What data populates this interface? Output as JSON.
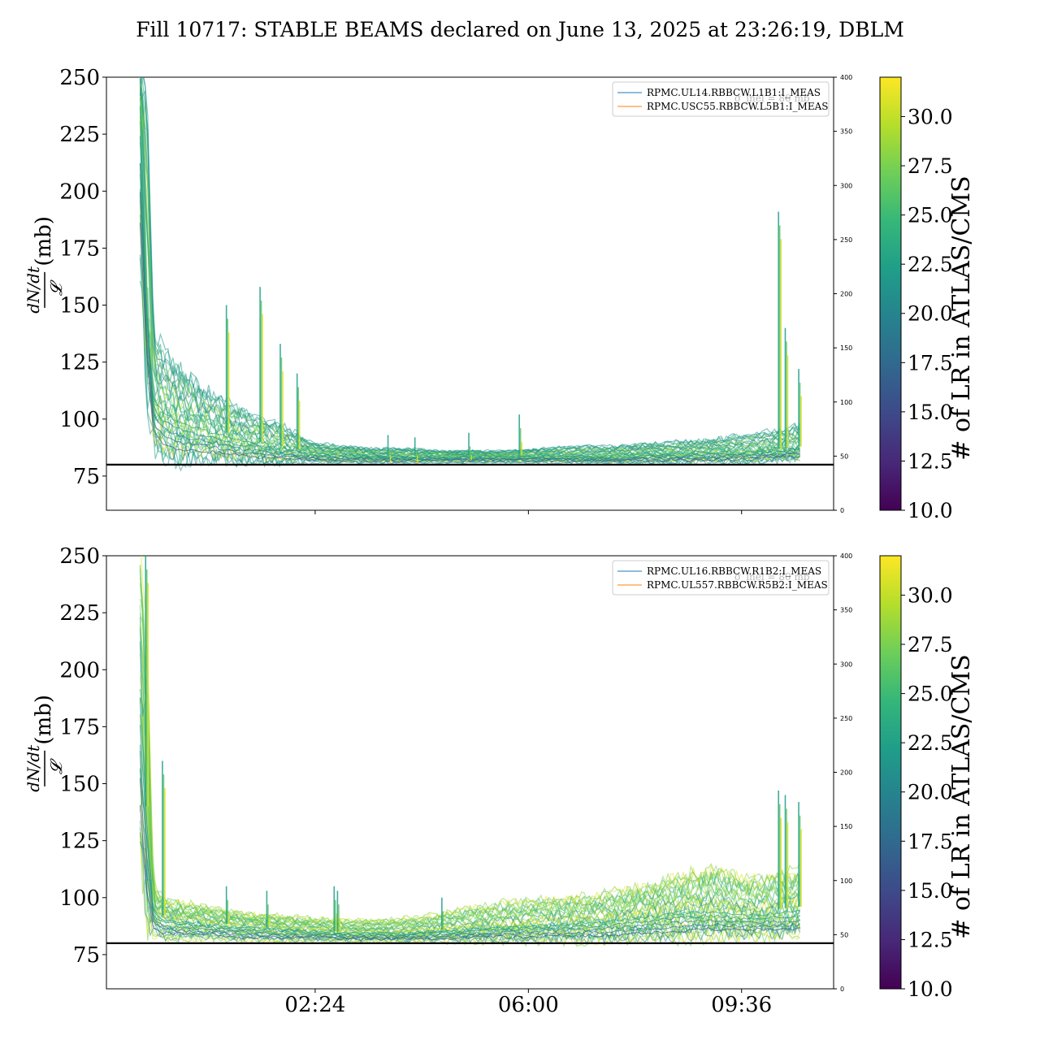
{
  "title": "Fill 10717: STABLE BEAMS declared on June 13, 2025 at 23:26:19, DBLM",
  "colors": {
    "viridis": [
      "#440154",
      "#482878",
      "#3e4989",
      "#31688e",
      "#26828e",
      "#1f9e89",
      "#35b779",
      "#6ece58",
      "#b5de2b",
      "#fde725"
    ],
    "reference_line": "#000000",
    "legend_line_1": "#1f77b4",
    "legend_line_2": "#ff7f0e"
  },
  "colorbar": {
    "label": "# of LR in ATLAS/CMS",
    "min": 10.0,
    "max": 32.0,
    "ticks": [
      "10.0",
      "12.5",
      "15.0",
      "17.5",
      "20.0",
      "22.5",
      "25.0",
      "27.5",
      "30.0"
    ]
  },
  "chart_data": [
    {
      "type": "line",
      "panel": "top",
      "ylabel_numerator": "dN/dt",
      "ylabel_denominator": "𝓛",
      "ylabel_unit": "(mb)",
      "ylim": [
        60,
        250
      ],
      "yticks": [
        75,
        100,
        125,
        150,
        175,
        200,
        225,
        250
      ],
      "right_ylim": [
        0,
        400
      ],
      "right_yticks": [
        0,
        50,
        100,
        150,
        200,
        250,
        300,
        350,
        400
      ],
      "xlim_hours": [
        0.0,
        10.8
      ],
      "xticks_hours": [
        3.1,
        6.267,
        9.433
      ],
      "xticklabels": [],
      "reference_line_mb": 80,
      "legend": [
        {
          "label": "RPMC.UL14.RBBCW.L1B1:I_MEAS",
          "color": "#1f77b4"
        },
        {
          "label": "RPMC.USC55.RBBCW.L5B1:I_MEAS",
          "color": "#ff7f0e"
        }
      ],
      "legend_overlay_text": "σ_inel = 80 mb",
      "band": {
        "x_hours": [
          0.5,
          0.6,
          0.7,
          0.85,
          1.0,
          1.2,
          1.4,
          1.6,
          1.8,
          2.0,
          2.2,
          2.4,
          2.6,
          2.8,
          3.0,
          3.2,
          3.5,
          4.0,
          4.5,
          5.0,
          5.5,
          6.0,
          6.5,
          7.0,
          7.5,
          8.0,
          8.5,
          9.0,
          9.5,
          10.0,
          10.3
        ],
        "low": [
          165,
          120,
          88,
          83,
          82,
          82,
          82,
          82,
          82,
          81,
          81,
          81,
          81,
          81,
          81,
          81,
          81,
          81,
          81,
          81,
          81,
          81,
          81,
          81,
          81,
          81,
          81,
          81,
          81,
          82,
          82
        ],
        "mid": [
          250,
          150,
          112,
          106,
          103,
          100,
          98,
          96,
          94,
          92,
          91,
          89,
          88,
          87,
          86,
          85,
          85,
          84,
          84,
          84,
          84,
          84,
          84,
          84,
          84,
          85,
          85,
          86,
          86,
          87,
          88
        ],
        "high": [
          250,
          250,
          140,
          128,
          124,
          118,
          114,
          110,
          107,
          104,
          101,
          99,
          97,
          94,
          90,
          89,
          88,
          87,
          87,
          86,
          86,
          86,
          87,
          88,
          88,
          89,
          90,
          91,
          93,
          95,
          97
        ]
      },
      "spikes": [
        {
          "x_hour": 1.8,
          "value": 150
        },
        {
          "x_hour": 2.3,
          "value": 158
        },
        {
          "x_hour": 2.6,
          "value": 133
        },
        {
          "x_hour": 2.85,
          "value": 120
        },
        {
          "x_hour": 4.2,
          "value": 93
        },
        {
          "x_hour": 4.6,
          "value": 92
        },
        {
          "x_hour": 5.4,
          "value": 94
        },
        {
          "x_hour": 6.15,
          "value": 102
        },
        {
          "x_hour": 10.0,
          "value": 191
        },
        {
          "x_hour": 10.1,
          "value": 140
        },
        {
          "x_hour": 10.3,
          "value": 122
        }
      ]
    },
    {
      "type": "line",
      "panel": "bottom",
      "ylabel_numerator": "dN/dt",
      "ylabel_denominator": "𝓛",
      "ylabel_unit": "(mb)",
      "ylim": [
        60,
        250
      ],
      "yticks": [
        75,
        100,
        125,
        150,
        175,
        200,
        225,
        250
      ],
      "right_ylim": [
        0,
        400
      ],
      "right_yticks": [
        0,
        50,
        100,
        150,
        200,
        250,
        300,
        350,
        400
      ],
      "xlim_hours": [
        0.0,
        10.8
      ],
      "xticks_hours": [
        3.1,
        6.267,
        9.433
      ],
      "xticklabels": [
        "02:24",
        "06:00",
        "09:36"
      ],
      "reference_line_mb": 80,
      "legend": [
        {
          "label": "RPMC.UL16.RBBCW.R1B2:I_MEAS",
          "color": "#1f77b4"
        },
        {
          "label": "RPMC.UL557.RBBCW.R5B2:I_MEAS",
          "color": "#ff7f0e"
        }
      ],
      "legend_overlay_text": "σ_inel = 80 mb",
      "band": {
        "x_hours": [
          0.5,
          0.6,
          0.7,
          0.85,
          1.0,
          1.3,
          1.6,
          2.0,
          2.5,
          3.0,
          3.5,
          4.0,
          4.5,
          5.0,
          5.5,
          6.0,
          6.5,
          7.0,
          7.5,
          8.0,
          8.5,
          9.0,
          9.5,
          10.0,
          10.3
        ],
        "low": [
          120,
          90,
          84,
          82,
          82,
          82,
          82,
          81,
          81,
          81,
          81,
          81,
          81,
          81,
          81,
          81,
          81,
          81,
          81,
          82,
          82,
          83,
          83,
          83,
          83
        ],
        "mid": [
          200,
          140,
          95,
          92,
          91,
          90,
          89,
          88,
          87,
          86,
          85,
          85,
          85,
          86,
          87,
          88,
          89,
          90,
          91,
          93,
          95,
          96,
          94,
          95,
          96
        ],
        "high": [
          250,
          210,
          105,
          100,
          98,
          97,
          95,
          93,
          92,
          91,
          90,
          90,
          91,
          93,
          96,
          98,
          99,
          100,
          102,
          105,
          109,
          113,
          108,
          110,
          112
        ]
      },
      "spikes": [
        {
          "x_hour": 0.6,
          "value": 250
        },
        {
          "x_hour": 0.85,
          "value": 160
        },
        {
          "x_hour": 1.8,
          "value": 105
        },
        {
          "x_hour": 2.4,
          "value": 103
        },
        {
          "x_hour": 3.4,
          "value": 105
        },
        {
          "x_hour": 3.45,
          "value": 103
        },
        {
          "x_hour": 5.0,
          "value": 100
        },
        {
          "x_hour": 10.0,
          "value": 147
        },
        {
          "x_hour": 10.1,
          "value": 145
        },
        {
          "x_hour": 10.3,
          "value": 142
        }
      ]
    }
  ]
}
